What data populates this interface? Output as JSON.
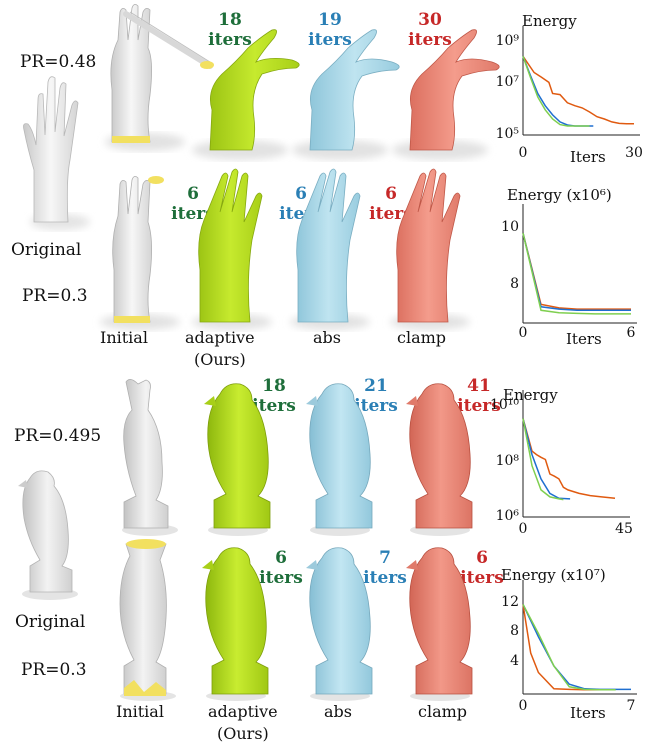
{
  "colors": {
    "adaptive": "#b8e020",
    "abs": "#a9d8e8",
    "clamp": "#ee8878",
    "initial": "#ededed",
    "handle": "#f2e060",
    "curve_adaptive": "#7fcf50",
    "curve_abs": "#1f6fd0",
    "curve_clamp": "#e05a10",
    "iters_adaptive": "#1e6e3a",
    "iters_abs": "#2a7fb5",
    "iters_clamp": "#c62828"
  },
  "hand": {
    "row1": {
      "pr": "PR=0.48",
      "adaptive_iters": "18",
      "abs_iters": "19",
      "clamp_iters": "30"
    },
    "row2": {
      "pr": "PR=0.3",
      "adaptive_iters": "6",
      "abs_iters": "6",
      "clamp_iters": "6"
    },
    "original_label": "Original"
  },
  "bird": {
    "row1": {
      "pr": "PR=0.495",
      "adaptive_iters": "18",
      "abs_iters": "21",
      "clamp_iters": "41"
    },
    "row2": {
      "pr": "PR=0.3",
      "adaptive_iters": "6",
      "abs_iters": "7",
      "clamp_iters": "6"
    },
    "original_label": "Original"
  },
  "iters_word": "iters",
  "column_labels": {
    "initial": "Initial",
    "adaptive": "adaptive",
    "ours": "(Ours)",
    "abs": "abs",
    "clamp": "clamp"
  },
  "chart_data": [
    {
      "type": "line",
      "ylabel": "Energy",
      "xlabel": "Iters",
      "yscale": "log",
      "ylim": [
        100000,
        1000000000
      ],
      "xlim": [
        0,
        30
      ],
      "y_tick_labels": [
        "10⁹",
        "10⁷",
        "10⁵"
      ],
      "x_tick_labels": [
        "0",
        "30"
      ],
      "series": [
        {
          "color_key": "curve_clamp",
          "x": [
            0,
            3,
            5,
            7,
            8,
            10,
            12,
            14,
            16,
            18,
            20,
            22,
            24,
            26,
            28,
            30
          ],
          "y": [
            200000000,
            40000000,
            25000000,
            15000000,
            5000000,
            4500000,
            2000000,
            1500000,
            1200000,
            800000,
            500000,
            400000,
            300000,
            260000,
            250000,
            250000
          ]
        },
        {
          "color_key": "curve_abs",
          "x": [
            0,
            2,
            4,
            6,
            8,
            10,
            12,
            14,
            16,
            19
          ],
          "y": [
            200000000,
            30000000,
            5000000,
            1500000,
            600000,
            300000,
            220000,
            200000,
            200000,
            200000
          ]
        },
        {
          "color_key": "curve_adaptive",
          "x": [
            0,
            2,
            4,
            6,
            8,
            10,
            12,
            14,
            16,
            18
          ],
          "y": [
            200000000,
            25000000,
            3500000,
            1000000,
            400000,
            230000,
            200000,
            200000,
            200000,
            200000
          ]
        }
      ]
    },
    {
      "type": "line",
      "ylabel": "Energy (x10⁶)",
      "xlabel": "Iters",
      "ylim": [
        6.6,
        10.6
      ],
      "xlim": [
        0,
        6
      ],
      "y_tick_labels": [
        "10",
        "8"
      ],
      "x_tick_labels": [
        "0",
        "6"
      ],
      "series": [
        {
          "color_key": "curve_clamp",
          "x": [
            0,
            1,
            2,
            3,
            4,
            5,
            6
          ],
          "y": [
            10.3,
            7.3,
            7.15,
            7.1,
            7.1,
            7.1,
            7.1
          ]
        },
        {
          "color_key": "curve_abs",
          "x": [
            0,
            1,
            2,
            3,
            4,
            5,
            6
          ],
          "y": [
            10.3,
            7.2,
            7.1,
            7.05,
            7.05,
            7.05,
            7.05
          ]
        },
        {
          "color_key": "curve_adaptive",
          "x": [
            0,
            1,
            2,
            3,
            4,
            5,
            6
          ],
          "y": [
            10.3,
            7.05,
            6.95,
            6.92,
            6.9,
            6.9,
            6.9
          ]
        }
      ]
    },
    {
      "type": "line",
      "ylabel": "Energy",
      "xlabel": "",
      "yscale": "log",
      "ylim": [
        1000000,
        10000000000
      ],
      "xlim": [
        0,
        45
      ],
      "y_tick_labels": [
        "10¹⁰",
        "10⁸",
        "10⁶"
      ],
      "x_tick_labels": [
        "0",
        "45"
      ],
      "series": [
        {
          "color_key": "curve_clamp",
          "x": [
            0,
            4,
            6,
            8,
            10,
            12,
            14,
            16,
            18,
            20,
            25,
            30,
            35,
            41
          ],
          "y": [
            3000000000,
            200000000,
            150000000,
            120000000,
            100000000,
            30000000,
            25000000,
            20000000,
            10000000,
            8000000,
            6000000,
            5000000,
            4500000,
            4000000
          ]
        },
        {
          "color_key": "curve_abs",
          "x": [
            0,
            4,
            8,
            12,
            16,
            21
          ],
          "y": [
            3000000000,
            150000000,
            20000000,
            6000000,
            4000000,
            3800000
          ]
        },
        {
          "color_key": "curve_adaptive",
          "x": [
            0,
            4,
            8,
            12,
            16,
            18
          ],
          "y": [
            3000000000,
            60000000,
            8000000,
            4500000,
            3800000,
            3600000
          ]
        }
      ]
    },
    {
      "type": "line",
      "ylabel": "Energy (x10⁷)",
      "xlabel": "Iters",
      "ylim": [
        0,
        14
      ],
      "xlim": [
        0,
        7
      ],
      "y_tick_labels": [
        "12",
        "8",
        "4"
      ],
      "x_tick_labels": [
        "0",
        "7"
      ],
      "series": [
        {
          "color_key": "curve_clamp",
          "x": [
            0,
            0.5,
            1,
            2,
            3,
            4,
            5,
            6
          ],
          "y": [
            13.5,
            6,
            3,
            0.5,
            0.4,
            0.35,
            0.35,
            0.35
          ]
        },
        {
          "color_key": "curve_abs",
          "x": [
            0,
            1,
            2,
            3,
            4,
            5,
            6,
            7
          ],
          "y": [
            13.5,
            8.5,
            4,
            1.2,
            0.5,
            0.4,
            0.4,
            0.4
          ]
        },
        {
          "color_key": "curve_adaptive",
          "x": [
            0,
            1,
            2,
            3,
            4,
            5,
            6
          ],
          "y": [
            13.5,
            9,
            4,
            0.8,
            0.4,
            0.35,
            0.35
          ]
        }
      ]
    }
  ]
}
